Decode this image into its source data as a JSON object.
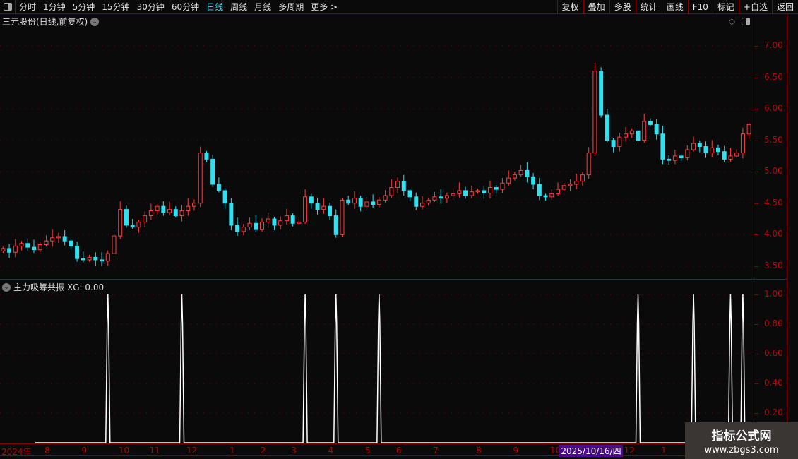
{
  "toolbar": {
    "periods": [
      "分时",
      "1分钟",
      "5分钟",
      "15分钟",
      "30分钟",
      "60分钟",
      "日线",
      "周线",
      "月线",
      "多周期",
      "更多 >"
    ],
    "active_period": "日线",
    "buttons": [
      "复权",
      "叠加",
      "多股",
      "统计",
      "画线",
      "F10",
      "标记",
      "+自选",
      "返回"
    ]
  },
  "main": {
    "title": "三元股份(日线,前复权)",
    "price_ticks": [
      "7.00",
      "6.50",
      "6.00",
      "5.50",
      "5.00",
      "4.50",
      "4.00",
      "3.50"
    ]
  },
  "indicator": {
    "title": "主力吸筹共振",
    "value_label": "XG: 0.00",
    "ticks": [
      "1.00",
      "0.80",
      "0.60",
      "0.40",
      "0.20"
    ]
  },
  "date_axis": {
    "labels": [
      {
        "t": "2024年",
        "i": 0
      },
      {
        "t": "8",
        "i": 7
      },
      {
        "t": "9",
        "i": 13
      },
      {
        "t": "10",
        "i": 19
      },
      {
        "t": "11",
        "i": 24
      },
      {
        "t": "12",
        "i": 30
      },
      {
        "t": "1",
        "i": 37
      },
      {
        "t": "2",
        "i": 42
      },
      {
        "t": "3",
        "i": 47
      },
      {
        "t": "4",
        "i": 53
      },
      {
        "t": "5",
        "i": 59
      },
      {
        "t": "6",
        "i": 64
      },
      {
        "t": "7",
        "i": 70
      },
      {
        "t": "8",
        "i": 77
      },
      {
        "t": "9",
        "i": 83
      },
      {
        "t": "10",
        "i": 89
      },
      {
        "t": "12",
        "i": 101
      },
      {
        "t": "1",
        "i": 107
      }
    ],
    "cursor_date": "2025/10/16/四",
    "cursor_index": 91
  },
  "watermark": {
    "line1": "指标公式网",
    "line2": "www.zbgs3.com"
  },
  "colors": {
    "up": "#ff3c3c",
    "down": "#2fe0f0",
    "axis": "#c00000",
    "signal": "#ffffff"
  },
  "chart_data": [
    {
      "type": "candlestick",
      "ylim": [
        3.3,
        7.3
      ],
      "close": [
        3.78,
        3.72,
        3.82,
        3.86,
        3.8,
        3.76,
        3.84,
        3.9,
        3.95,
        3.97,
        3.9,
        3.82,
        3.62,
        3.6,
        3.64,
        3.6,
        3.58,
        3.7,
        3.98,
        4.4,
        4.15,
        4.12,
        4.2,
        4.3,
        4.38,
        4.45,
        4.35,
        4.4,
        4.3,
        4.38,
        4.45,
        4.5,
        5.3,
        5.2,
        4.8,
        4.7,
        4.5,
        4.15,
        4.05,
        4.12,
        4.18,
        4.08,
        4.2,
        4.25,
        4.15,
        4.22,
        4.3,
        4.18,
        4.2,
        4.6,
        4.5,
        4.4,
        4.45,
        4.3,
        4.0,
        4.55,
        4.5,
        4.58,
        4.45,
        4.52,
        4.48,
        4.55,
        4.62,
        4.75,
        4.85,
        4.7,
        4.6,
        4.45,
        4.5,
        4.55,
        4.6,
        4.58,
        4.62,
        4.65,
        4.7,
        4.62,
        4.68,
        4.7,
        4.66,
        4.75,
        4.72,
        4.82,
        4.9,
        4.95,
        5.02,
        4.92,
        4.8,
        4.62,
        4.6,
        4.65,
        4.72,
        4.78,
        4.8,
        4.85,
        4.95,
        5.3,
        6.6,
        5.9,
        5.5,
        5.4,
        5.55,
        5.6,
        5.65,
        5.5,
        5.8,
        5.75,
        5.6,
        5.2,
        5.18,
        5.25,
        5.22,
        5.35,
        5.45,
        5.4,
        5.3,
        5.38,
        5.32,
        5.2,
        5.25,
        5.3,
        5.6,
        5.75
      ]
    },
    {
      "type": "line",
      "name": "XG",
      "ylim": [
        0,
        1
      ],
      "signal_indices": [
        17,
        29,
        49,
        54,
        61,
        103,
        112,
        118,
        120
      ]
    }
  ]
}
